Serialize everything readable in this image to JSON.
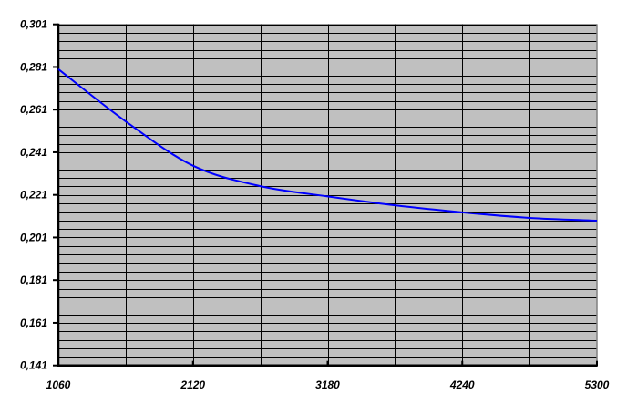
{
  "chart_data": {
    "type": "line",
    "title": "",
    "xlabel": "",
    "ylabel": "",
    "xlim": [
      1060,
      5300
    ],
    "ylim": [
      0.141,
      0.301
    ],
    "x_ticks": [
      1060,
      2120,
      3180,
      4240,
      5300
    ],
    "x_tick_labels": [
      "1060",
      "2120",
      "3180",
      "4240",
      "5300"
    ],
    "y_ticks": [
      0.141,
      0.161,
      0.181,
      0.201,
      0.221,
      0.241,
      0.261,
      0.281,
      0.301
    ],
    "y_tick_labels": [
      "0,141",
      "0,161",
      "0,181",
      "0,201",
      "0,221",
      "0,241",
      "0,261",
      "0,281",
      "0,301"
    ],
    "x_minor_step": 530,
    "y_minor_step": 0.004,
    "grid": true,
    "legend": "none",
    "colors": {
      "plot_background": "#c0c0c0",
      "grid": "#000000",
      "series": "#0000ff"
    },
    "series": [
      {
        "x": [
          1060,
          1590,
          2120,
          2650,
          3180,
          3710,
          4240,
          4770,
          5300
        ],
        "y": [
          0.28,
          0.2555,
          0.2347,
          0.2251,
          0.2203,
          0.2161,
          0.2128,
          0.2102,
          0.2089
        ]
      }
    ]
  }
}
